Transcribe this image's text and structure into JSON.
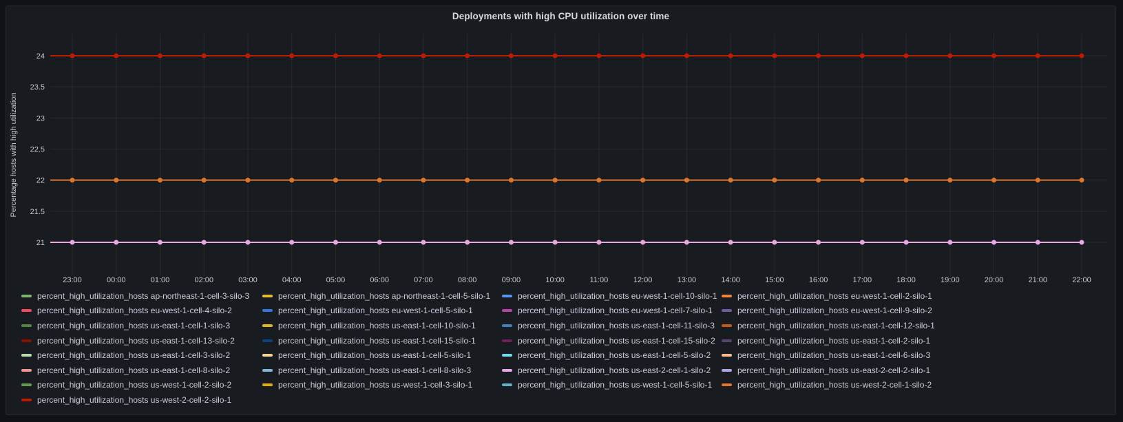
{
  "chart_data": {
    "type": "line",
    "title": "Deployments with high CPU utilization over time",
    "xlabel": "",
    "ylabel": "Percentage hosts with high utilization",
    "x_ticks": [
      "23:00",
      "00:00",
      "01:00",
      "02:00",
      "03:00",
      "04:00",
      "05:00",
      "06:00",
      "07:00",
      "08:00",
      "09:00",
      "10:00",
      "11:00",
      "12:00",
      "13:00",
      "14:00",
      "15:00",
      "16:00",
      "17:00",
      "18:00",
      "19:00",
      "20:00",
      "21:00",
      "22:00"
    ],
    "y_ticks": [
      21,
      21.5,
      22,
      22.5,
      23,
      23.5,
      24
    ],
    "ylim": [
      20.78,
      24.35
    ],
    "grid": true,
    "legend_position": "bottom",
    "visible_lines": [
      {
        "value": 24,
        "color": "#bf1b00"
      },
      {
        "value": 22,
        "color": "#e0752d"
      },
      {
        "value": 21,
        "color": "#e5a8e2"
      }
    ],
    "series": [
      {
        "label": "percent_high_utilization_hosts ap-northeast-1-cell-3-silo-3",
        "color": "#7eb26d"
      },
      {
        "label": "percent_high_utilization_hosts ap-northeast-1-cell-5-silo-1",
        "color": "#eab839"
      },
      {
        "label": "percent_high_utilization_hosts eu-west-1-cell-10-silo-1",
        "color": "#5794f2"
      },
      {
        "label": "percent_high_utilization_hosts eu-west-1-cell-2-silo-1",
        "color": "#ef843c"
      },
      {
        "label": "percent_high_utilization_hosts eu-west-1-cell-4-silo-2",
        "color": "#f2495c"
      },
      {
        "label": "percent_high_utilization_hosts eu-west-1-cell-5-silo-1",
        "color": "#3274d9"
      },
      {
        "label": "percent_high_utilization_hosts eu-west-1-cell-7-silo-1",
        "color": "#ba43a9"
      },
      {
        "label": "percent_high_utilization_hosts eu-west-1-cell-9-silo-2",
        "color": "#705da0"
      },
      {
        "label": "percent_high_utilization_hosts us-east-1-cell-1-silo-3",
        "color": "#508642"
      },
      {
        "label": "percent_high_utilization_hosts us-east-1-cell-10-silo-1",
        "color": "#ddb520"
      },
      {
        "label": "percent_high_utilization_hosts us-east-1-cell-11-silo-3",
        "color": "#447ebc"
      },
      {
        "label": "percent_high_utilization_hosts us-east-1-cell-12-silo-1",
        "color": "#c15c17"
      },
      {
        "label": "percent_high_utilization_hosts us-east-1-cell-13-silo-2",
        "color": "#890f02"
      },
      {
        "label": "percent_high_utilization_hosts us-east-1-cell-15-silo-1",
        "color": "#0a437c"
      },
      {
        "label": "percent_high_utilization_hosts us-east-1-cell-15-silo-2",
        "color": "#6d1f62"
      },
      {
        "label": "percent_high_utilization_hosts us-east-1-cell-2-silo-1",
        "color": "#584477"
      },
      {
        "label": "percent_high_utilization_hosts us-east-1-cell-3-silo-2",
        "color": "#b7dbab"
      },
      {
        "label": "percent_high_utilization_hosts us-east-1-cell-5-silo-1",
        "color": "#f4d598"
      },
      {
        "label": "percent_high_utilization_hosts us-east-1-cell-5-silo-2",
        "color": "#70dbed"
      },
      {
        "label": "percent_high_utilization_hosts us-east-1-cell-6-silo-3",
        "color": "#f9ba8f"
      },
      {
        "label": "percent_high_utilization_hosts us-east-1-cell-8-silo-2",
        "color": "#f29191"
      },
      {
        "label": "percent_high_utilization_hosts us-east-1-cell-8-silo-3",
        "color": "#82b5d8"
      },
      {
        "label": "percent_high_utilization_hosts us-east-2-cell-1-silo-2",
        "color": "#e5a8e2"
      },
      {
        "label": "percent_high_utilization_hosts us-east-2-cell-2-silo-1",
        "color": "#aea2e0"
      },
      {
        "label": "percent_high_utilization_hosts us-west-1-cell-2-silo-2",
        "color": "#629e51"
      },
      {
        "label": "percent_high_utilization_hosts us-west-1-cell-3-silo-1",
        "color": "#e5ac0e"
      },
      {
        "label": "percent_high_utilization_hosts us-west-1-cell-5-silo-1",
        "color": "#64b0c8"
      },
      {
        "label": "percent_high_utilization_hosts us-west-2-cell-1-silo-2",
        "color": "#e0752d"
      },
      {
        "label": "percent_high_utilization_hosts us-west-2-cell-2-silo-1",
        "color": "#bf1b00"
      }
    ]
  }
}
